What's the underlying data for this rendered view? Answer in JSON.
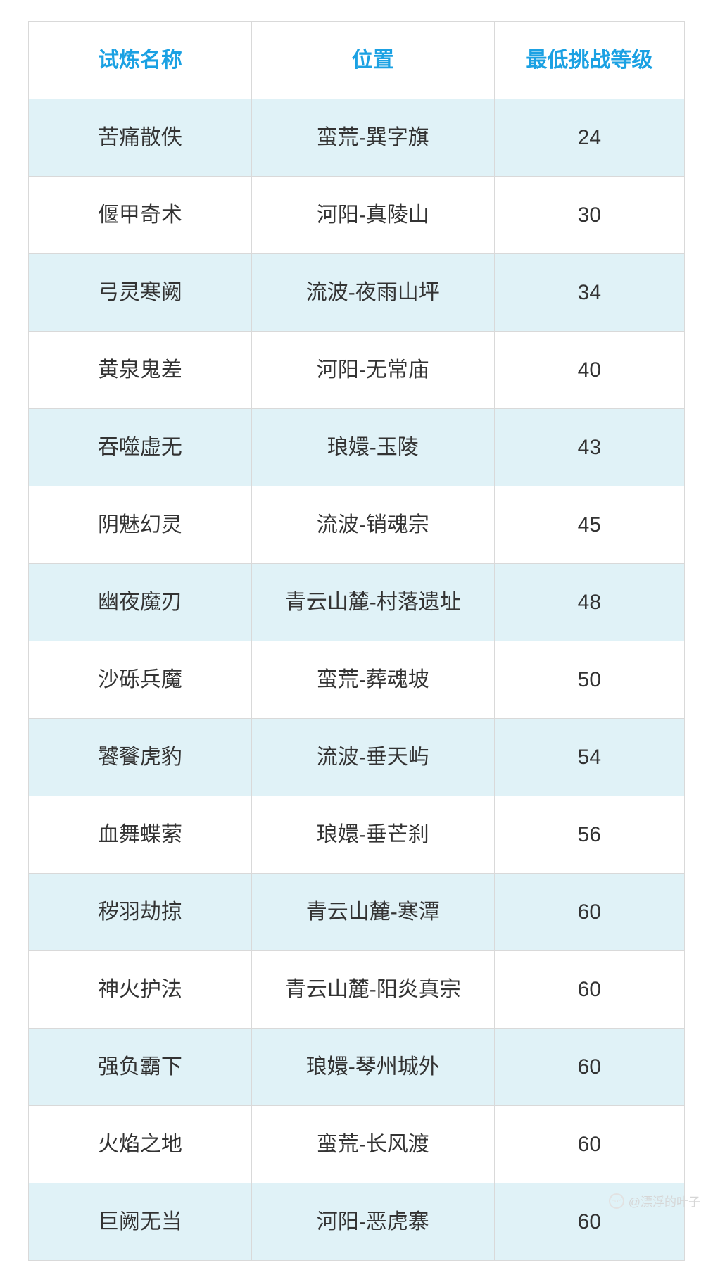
{
  "table": {
    "border_color": "#d9d9d9",
    "header": {
      "text_color": "#1ba1e3",
      "bg_color": "#ffffff",
      "font_size": 30,
      "columns": [
        "试炼名称",
        "位置",
        "最低挑战等级"
      ]
    },
    "body": {
      "text_color": "#333333",
      "font_size": 30,
      "row_bg_even": "#e0f2f7",
      "row_bg_odd": "#ffffff",
      "col_widths": [
        "34%",
        "37%",
        "29%"
      ]
    },
    "rows": [
      {
        "name": "苦痛散佚",
        "location": "蛮荒-巽字旗",
        "level": "24"
      },
      {
        "name": "偃甲奇术",
        "location": "河阳-真陵山",
        "level": "30"
      },
      {
        "name": "弓灵寒阙",
        "location": "流波-夜雨山坪",
        "level": "34"
      },
      {
        "name": "黄泉鬼差",
        "location": "河阳-无常庙",
        "level": "40"
      },
      {
        "name": "吞噬虚无",
        "location": "琅嬛-玉陵",
        "level": "43"
      },
      {
        "name": "阴魅幻灵",
        "location": "流波-销魂宗",
        "level": "45"
      },
      {
        "name": "幽夜魔刃",
        "location": "青云山麓-村落遗址",
        "level": "48"
      },
      {
        "name": "沙砾兵魔",
        "location": "蛮荒-葬魂坡",
        "level": "50"
      },
      {
        "name": "饕餮虎豹",
        "location": "流波-垂天屿",
        "level": "54"
      },
      {
        "name": "血舞蝶萦",
        "location": "琅嬛-垂芒刹",
        "level": "56"
      },
      {
        "name": "秽羽劫掠",
        "location": "青云山麓-寒潭",
        "level": "60"
      },
      {
        "name": "神火护法",
        "location": "青云山麓-阳炎真宗",
        "level": "60"
      },
      {
        "name": "强负霸下",
        "location": "琅嬛-琴州城外",
        "level": "60"
      },
      {
        "name": "火焰之地",
        "location": "蛮荒-长风渡",
        "level": "60"
      },
      {
        "name": "巨阙无当",
        "location": "河阳-恶虎寨",
        "level": "60"
      }
    ]
  },
  "watermark": {
    "text": "@漂浮的叶子"
  }
}
